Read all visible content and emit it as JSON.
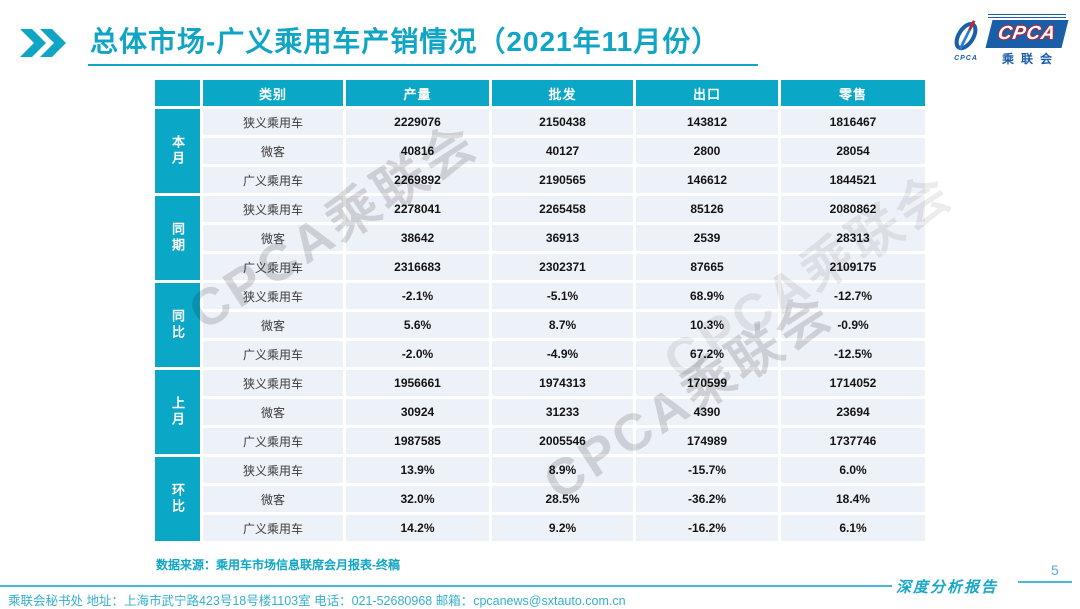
{
  "slide": {
    "title": "总体市场-广义乘用车产销情况（2021年11月份）",
    "page_number": "5",
    "report_label": "深度分析报告"
  },
  "logo": {
    "name": "CPCA",
    "subtext": "乘联会",
    "small_text": "CPCA"
  },
  "table": {
    "header": {
      "category": "类别",
      "columns": [
        "产量",
        "批发",
        "出口",
        "零售"
      ]
    },
    "groups": [
      {
        "label": "本月",
        "rows": [
          {
            "category": "狭义乘用车",
            "values": [
              "2229076",
              "2150438",
              "143812",
              "1816467"
            ]
          },
          {
            "category": "微客",
            "values": [
              "40816",
              "40127",
              "2800",
              "28054"
            ]
          },
          {
            "category": "广义乘用车",
            "values": [
              "2269892",
              "2190565",
              "146612",
              "1844521"
            ]
          }
        ]
      },
      {
        "label": "同期",
        "rows": [
          {
            "category": "狭义乘用车",
            "values": [
              "2278041",
              "2265458",
              "85126",
              "2080862"
            ]
          },
          {
            "category": "微客",
            "values": [
              "38642",
              "36913",
              "2539",
              "28313"
            ]
          },
          {
            "category": "广义乘用车",
            "values": [
              "2316683",
              "2302371",
              "87665",
              "2109175"
            ]
          }
        ]
      },
      {
        "label": "同比",
        "rows": [
          {
            "category": "狭义乘用车",
            "values": [
              "-2.1%",
              "-5.1%",
              "68.9%",
              "-12.7%"
            ]
          },
          {
            "category": "微客",
            "values": [
              "5.6%",
              "8.7%",
              "10.3%",
              "-0.9%"
            ]
          },
          {
            "category": "广义乘用车",
            "values": [
              "-2.0%",
              "-4.9%",
              "67.2%",
              "-12.5%"
            ]
          }
        ]
      },
      {
        "label": "上月",
        "rows": [
          {
            "category": "狭义乘用车",
            "values": [
              "1956661",
              "1974313",
              "170599",
              "1714052"
            ]
          },
          {
            "category": "微客",
            "values": [
              "30924",
              "31233",
              "4390",
              "23694"
            ]
          },
          {
            "category": "广义乘用车",
            "values": [
              "1987585",
              "2005546",
              "174989",
              "1737746"
            ]
          }
        ]
      },
      {
        "label": "环比",
        "rows": [
          {
            "category": "狭义乘用车",
            "values": [
              "13.9%",
              "8.9%",
              "-15.7%",
              "6.0%"
            ]
          },
          {
            "category": "微客",
            "values": [
              "32.0%",
              "28.5%",
              "-36.2%",
              "18.4%"
            ]
          },
          {
            "category": "广义乘用车",
            "values": [
              "14.2%",
              "9.2%",
              "-16.2%",
              "6.1%"
            ]
          }
        ]
      }
    ]
  },
  "source_note": "数据来源：乘用车市场信息联席会月报表-终稿",
  "watermark_text": "CPCA乘联会",
  "footer": {
    "text": "乘联会秘书处  地址：上海市武宁路423号18号楼1103室 电话：021-52680968  邮箱：cpcanews@sxtauto.com.cn"
  },
  "colors": {
    "accent_cyan": "#10a5c4",
    "table_header_cyan": "#0aa7c6",
    "table_row_bg": "#edf1f8",
    "logo_blue": "#1b5ea8",
    "logo_red": "#d21f26",
    "footer_cyan": "#35afd0"
  }
}
